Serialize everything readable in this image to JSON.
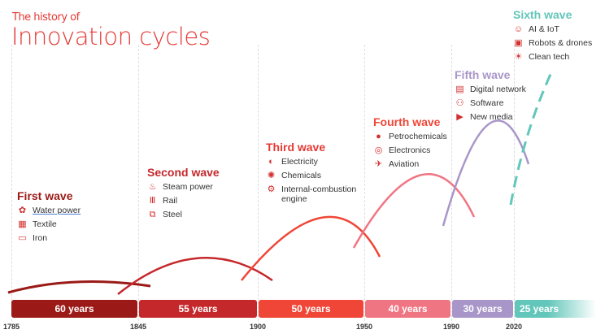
{
  "header": {
    "subtitle": "The history of",
    "title": "Innovation cycles"
  },
  "years": [
    "1785",
    "1845",
    "1900",
    "1950",
    "1990",
    "2020"
  ],
  "durations": [
    {
      "label": "60 years",
      "color": "#9b1a17"
    },
    {
      "label": "55 years",
      "color": "#c4282b"
    },
    {
      "label": "50 years",
      "color": "#ef4637"
    },
    {
      "label": "40 years",
      "color": "#f07583"
    },
    {
      "label": "30 years",
      "color": "#a996c9"
    },
    {
      "label": "25 years",
      "color": "#62c6ba"
    }
  ],
  "waves": [
    {
      "title": "First wave",
      "color": "#9b1a17",
      "items": [
        {
          "label": "Water power",
          "icon": "water-wheel-icon"
        },
        {
          "label": "Textile",
          "icon": "textile-icon"
        },
        {
          "label": "Iron",
          "icon": "iron-icon"
        }
      ]
    },
    {
      "title": "Second wave",
      "color": "#c4282b",
      "items": [
        {
          "label": "Steam power",
          "icon": "steam-engine-icon"
        },
        {
          "label": "Rail",
          "icon": "rail-icon"
        },
        {
          "label": "Steel",
          "icon": "steel-icon"
        }
      ]
    },
    {
      "title": "Third wave",
      "color": "#e53935",
      "items": [
        {
          "label": "Electricity",
          "icon": "lightbulb-icon"
        },
        {
          "label": "Chemicals",
          "icon": "atom-icon"
        },
        {
          "label": "Internal-combustion engine",
          "icon": "gear-icon"
        }
      ]
    },
    {
      "title": "Fourth wave",
      "color": "#ef4637",
      "items": [
        {
          "label": "Petrochemicals",
          "icon": "oil-drop-icon"
        },
        {
          "label": "Electronics",
          "icon": "circuit-icon"
        },
        {
          "label": "Aviation",
          "icon": "airplane-icon"
        }
      ]
    },
    {
      "title": "Fifth wave",
      "color": "#a996c9",
      "items": [
        {
          "label": "Digital network",
          "icon": "network-icon"
        },
        {
          "label": "Software",
          "icon": "software-icon"
        },
        {
          "label": "New media",
          "icon": "play-icon"
        }
      ]
    },
    {
      "title": "Sixth wave",
      "color": "#62c6ba",
      "items": [
        {
          "label": "AI & IoT",
          "icon": "ai-head-icon"
        },
        {
          "label": "Robots & drones",
          "icon": "robot-icon"
        },
        {
          "label": "Clean tech",
          "icon": "solar-panel-icon"
        }
      ]
    }
  ]
}
